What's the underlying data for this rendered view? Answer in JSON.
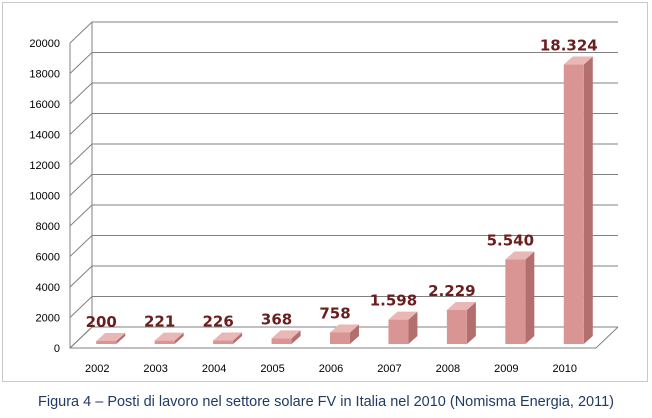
{
  "chart_data": {
    "type": "bar",
    "categories": [
      "2002",
      "2003",
      "2004",
      "2005",
      "2006",
      "2007",
      "2008",
      "2009",
      "2010"
    ],
    "values": [
      200,
      221,
      226,
      368,
      758,
      1598,
      2229,
      5540,
      18324
    ],
    "data_labels": [
      "200",
      "221",
      "226",
      "368",
      "758",
      "1.598",
      "2.229",
      "5.540",
      "18.324"
    ],
    "y_ticks": [
      "0",
      "2000",
      "4000",
      "6000",
      "8000",
      "10000",
      "12000",
      "14000",
      "16000",
      "18000",
      "20000"
    ],
    "ylim": [
      0,
      20000
    ],
    "grid": true,
    "style": "3d-column",
    "colors": {
      "bar_front": "#d99594",
      "bar_side": "#b26f6e",
      "bar_top": "#e9b7b6",
      "grid": "#808080",
      "label": "#6b1e1e",
      "caption": "#1f3b63"
    }
  },
  "caption": "Figura 4 – Posti di lavoro nel settore solare FV in Italia nel 2010 (Nomisma Energia, 2011)"
}
